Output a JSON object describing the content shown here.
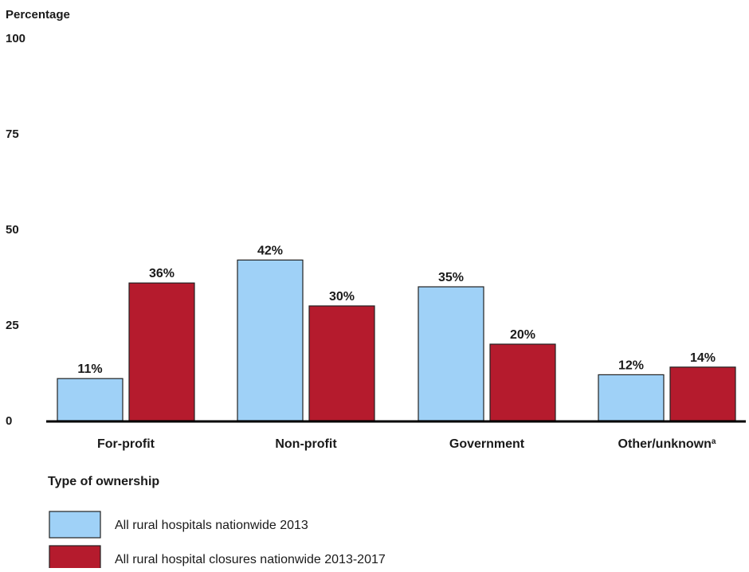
{
  "chart_data": {
    "type": "bar",
    "ylabel": "Percentage",
    "xlabel": "Type of ownership",
    "ylim": [
      0,
      100
    ],
    "yticks": [
      0,
      25,
      50,
      75,
      100
    ],
    "grid": false,
    "legend_position": "bottom-left",
    "categories": [
      "For-profit",
      "Non-profit",
      "Government",
      "Other/unknown"
    ],
    "category_footnote": {
      "index": 3,
      "mark": "a"
    },
    "value_suffix": "%",
    "series": [
      {
        "name": "All rural hospitals nationwide 2013",
        "values": [
          11,
          42,
          35,
          12
        ],
        "color": "#9fd1f7"
      },
      {
        "name": "All rural hospital closures nationwide 2013-2017",
        "values": [
          36,
          30,
          20,
          14
        ],
        "color": "#b51b2d"
      }
    ],
    "axis_color": "#000000"
  }
}
